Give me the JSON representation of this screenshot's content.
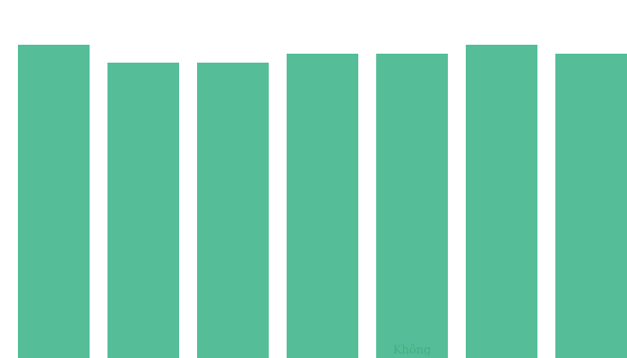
{
  "chart_data": {
    "type": "bar",
    "title": "",
    "xlabel": "",
    "ylabel": "",
    "categories": [
      "",
      "",
      "",
      "",
      "Không",
      "",
      ""
    ],
    "values": [
      35,
      33,
      33,
      34,
      34,
      35,
      34
    ],
    "ylim": [
      0,
      35
    ],
    "grid": false,
    "legend": "none"
  },
  "colors": {
    "bar": "#55be98",
    "label": "#44ad82",
    "background": "#ffffff"
  }
}
